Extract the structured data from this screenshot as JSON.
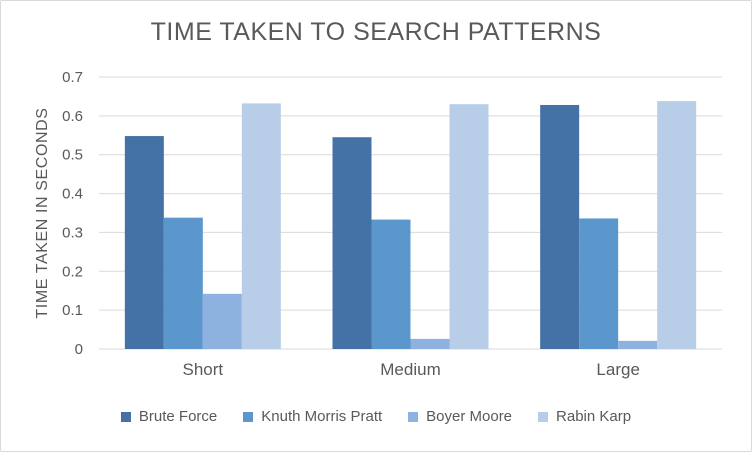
{
  "chart_data": {
    "type": "bar",
    "title": "TIME TAKEN TO SEARCH PATTERNS",
    "xlabel": "",
    "ylabel": "TIME TAKEN IN SECONDS",
    "categories": [
      "Short",
      "Medium",
      "Large"
    ],
    "ylim": [
      0,
      0.7
    ],
    "yticks": [
      "0",
      "0.1",
      "0.2",
      "0.3",
      "0.4",
      "0.5",
      "0.6",
      "0.7"
    ],
    "grid": true,
    "legend_position": "bottom",
    "series": [
      {
        "name": "Brute Force",
        "color": "#4472a6",
        "values": [
          0.548,
          0.545,
          0.628
        ]
      },
      {
        "name": "Knuth Morris Pratt",
        "color": "#5b96cd",
        "values": [
          0.338,
          0.333,
          0.336
        ]
      },
      {
        "name": "Boyer Moore",
        "color": "#8db2e0",
        "values": [
          0.142,
          0.026,
          0.021
        ]
      },
      {
        "name": "Rabin Karp",
        "color": "#b7cde8",
        "values": [
          0.632,
          0.63,
          0.638
        ]
      }
    ]
  }
}
